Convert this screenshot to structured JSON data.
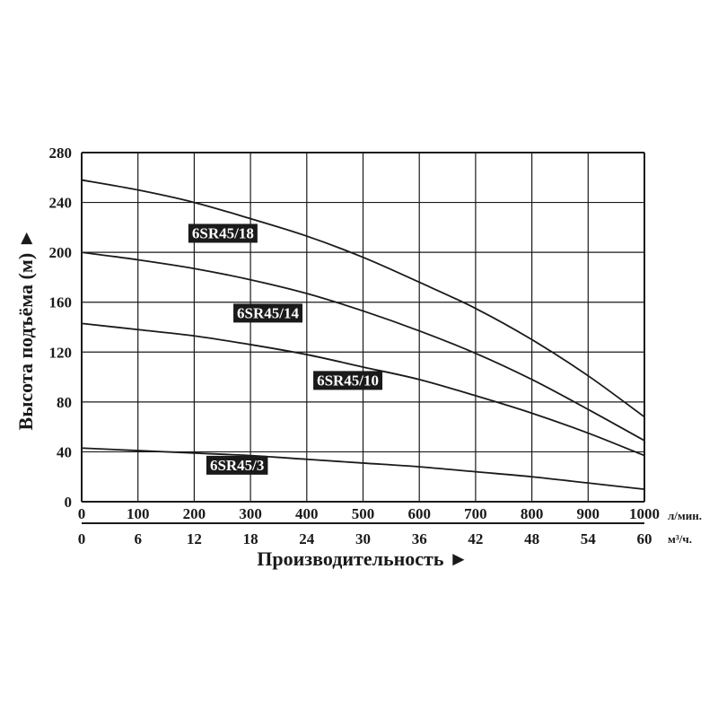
{
  "chart_data": {
    "type": "line",
    "xlabel": "Производительность ►",
    "ylabel": "Высота подъёма (м) ►",
    "x_units": "л/мин.",
    "x2_units": "м³/ч.",
    "xlim": [
      0,
      1000
    ],
    "ylim": [
      0,
      280
    ],
    "x_ticks": [
      "0",
      "100",
      "200",
      "300",
      "400",
      "500",
      "600",
      "700",
      "800",
      "900",
      "1000"
    ],
    "x2_ticks": [
      "0",
      "6",
      "12",
      "18",
      "24",
      "30",
      "36",
      "42",
      "48",
      "54",
      "60"
    ],
    "y_ticks": [
      "0",
      "40",
      "80",
      "120",
      "160",
      "200",
      "240",
      "280"
    ],
    "grid": true,
    "x": [
      0,
      100,
      200,
      300,
      400,
      500,
      600,
      700,
      800,
      900,
      1000
    ],
    "series": [
      {
        "name": "6SR45/18",
        "values": [
          258,
          250,
          240,
          227,
          213,
          196,
          176,
          155,
          130,
          101,
          68
        ]
      },
      {
        "name": "6SR45/14",
        "values": [
          200,
          194,
          187,
          178,
          167,
          153,
          137,
          119,
          98,
          74,
          49
        ]
      },
      {
        "name": "6SR45/10",
        "values": [
          143,
          138,
          133,
          126,
          118,
          108,
          98,
          85,
          71,
          55,
          37
        ]
      },
      {
        "name": "6SR45/3",
        "values": [
          43,
          41,
          39,
          37,
          34,
          31,
          28,
          24,
          20,
          15,
          10
        ]
      }
    ]
  }
}
